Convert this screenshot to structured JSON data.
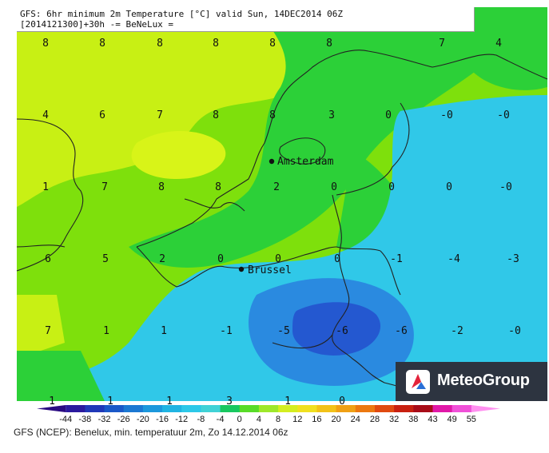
{
  "header": {
    "line1": "GFS: 6hr minimum 2m Temperature [°C] valid Sun, 14DEC2014 06Z",
    "line2": "[2014121300]+30h -= BeNeLux ="
  },
  "cities": [
    {
      "name": "Amsterdam"
    },
    {
      "name": "Brussel"
    }
  ],
  "grid_values": [
    [
      "8",
      "8",
      "8",
      "8",
      "8",
      "8",
      "7",
      "4"
    ],
    [
      "4",
      "6",
      "7",
      "8",
      "8",
      "3",
      "0",
      "-0",
      "-0"
    ],
    [
      "1",
      "7",
      "8",
      "8",
      "2",
      "0",
      "0",
      "0",
      "-0"
    ],
    [
      "6",
      "5",
      "2",
      "0",
      "0",
      "0",
      "-1",
      "-4",
      "-3"
    ],
    [
      "7",
      "1",
      "1",
      "-1",
      "-5",
      "-6",
      "-6",
      "-2",
      "-0"
    ],
    [
      "1",
      "1",
      "1",
      "3",
      "1",
      "0"
    ]
  ],
  "legend": {
    "ticks": [
      "-44",
      "-38",
      "-32",
      "-26",
      "-20",
      "-16",
      "-12",
      "-8",
      "-4",
      "0",
      "4",
      "8",
      "12",
      "16",
      "20",
      "24",
      "28",
      "32",
      "38",
      "43",
      "49",
      "55"
    ],
    "colors": [
      "#2a0a82",
      "#2b1a9e",
      "#2038b8",
      "#1a58c8",
      "#1b78d2",
      "#1c98dc",
      "#20b4e2",
      "#2cc8e8",
      "#40d2d6",
      "#18c860",
      "#58dc28",
      "#9ee82a",
      "#d4ee20",
      "#f0e020",
      "#f2c218",
      "#f0a014",
      "#ec7810",
      "#e04a10",
      "#c82010",
      "#a80c18",
      "#e018a8",
      "#f050d8",
      "#ff90f0"
    ]
  },
  "logo": {
    "brand": "MeteoGroup"
  },
  "footer": "GFS (NCEP): Benelux, min. temperatuur 2m, Zo 14.12.2014 06z",
  "colors": {
    "warm_yellow": "#c8f014",
    "light_green": "#7ee00c",
    "green": "#2cd038",
    "cyan": "#30c8e8",
    "blue": "#2a8ae0",
    "deep_blue": "#2458d0"
  }
}
